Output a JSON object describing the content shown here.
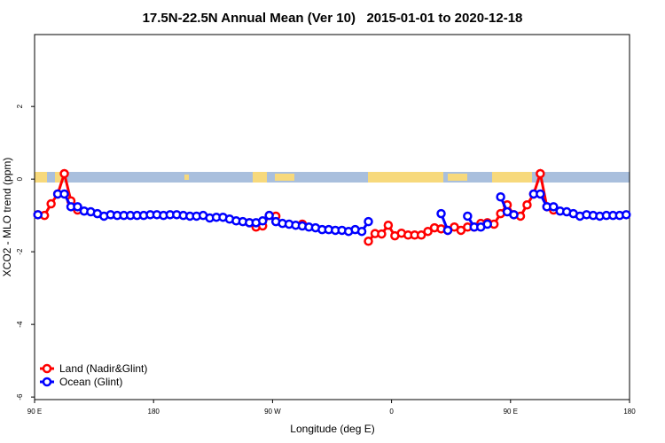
{
  "chart_data": {
    "type": "line",
    "title": "17.5N-22.5N Annual Mean (Ver 10)   2015-01-01 to 2020-12-18",
    "x_label": "Longitude (deg E)",
    "y_label": "XCO2 - MLO trend (ppm)",
    "xlim": [
      90,
      540
    ],
    "xticks": [
      {
        "value": 90,
        "label": "90 E"
      },
      180,
      {
        "value": 270,
        "label": "90 W"
      },
      {
        "value": 360,
        "label": "0"
      },
      {
        "value": 450,
        "label": "90 E"
      },
      {
        "value": 540,
        "label": "180"
      }
    ],
    "ylim": [
      -6.07,
      3.98
    ],
    "yticks": [
      -6,
      -4,
      -2,
      0,
      2
    ],
    "legend": "bottomleft",
    "x": [
      92.5,
      97.5,
      102.5,
      107.5,
      112.5,
      117.5,
      122.5,
      127.5,
      132.5,
      137.5,
      142.5,
      147.5,
      152.5,
      157.5,
      162.5,
      167.5,
      172.5,
      177.5,
      182.5,
      187.5,
      192.5,
      197.5,
      202.5,
      207.5,
      212.5,
      217.5,
      222.5,
      227.5,
      232.5,
      237.5,
      242.5,
      247.5,
      252.5,
      257.5,
      262.5,
      267.5,
      272.5,
      277.5,
      282.5,
      287.5,
      292.5,
      297.5,
      302.5,
      307.5,
      312.5,
      317.5,
      322.5,
      327.5,
      332.5,
      337.5,
      342.5,
      347.5,
      352.5,
      357.5,
      362.5,
      367.5,
      372.5,
      377.5,
      382.5,
      387.5,
      392.5,
      397.5,
      402.5,
      407.5,
      412.5,
      417.5,
      422.5,
      427.5,
      432.5,
      437.5,
      442.5,
      447.5,
      452.5,
      457.5,
      462.5,
      467.5,
      472.5,
      477.5,
      482.5,
      487.5,
      492.5,
      497.5,
      502.5,
      507.5,
      512.5,
      517.5,
      522.5,
      527.5,
      532.5,
      537.5
    ],
    "series": [
      {
        "name": "Land (Nadir&Glint)",
        "color": "#ff0000",
        "values": [
          -0.98,
          -1.0,
          -0.68,
          -0.41,
          0.15,
          -0.6,
          -0.85,
          null,
          null,
          null,
          null,
          null,
          null,
          null,
          null,
          null,
          null,
          null,
          null,
          null,
          null,
          null,
          null,
          null,
          null,
          null,
          null,
          null,
          null,
          null,
          null,
          null,
          -1.2,
          -1.32,
          -1.29,
          -1.0,
          -1.02,
          null,
          null,
          null,
          -1.24,
          null,
          null,
          null,
          null,
          null,
          null,
          null,
          null,
          null,
          -1.71,
          -1.5,
          -1.51,
          -1.27,
          -1.56,
          -1.49,
          -1.54,
          -1.54,
          -1.54,
          -1.44,
          -1.34,
          -1.37,
          -1.41,
          -1.32,
          -1.41,
          -1.32,
          -1.32,
          -1.22,
          -1.2,
          -1.24,
          -0.95,
          -0.71,
          -0.98,
          -1.02,
          -0.71,
          -0.41,
          0.15,
          -0.76,
          -0.85,
          null,
          null,
          null,
          null,
          null,
          null,
          null,
          null,
          null,
          null,
          null
        ]
      },
      {
        "name": "Ocean (Glint)",
        "color": "#0000ff",
        "values": [
          -0.98,
          null,
          null,
          -0.41,
          -0.41,
          -0.76,
          -0.76,
          -0.88,
          -0.9,
          -0.95,
          -1.02,
          -0.98,
          -1.0,
          -1.0,
          -1.0,
          -1.0,
          -1.0,
          -0.98,
          -0.98,
          -1.0,
          -0.98,
          -0.98,
          -1.0,
          -1.02,
          -1.02,
          -1.0,
          -1.07,
          -1.05,
          -1.05,
          -1.1,
          -1.15,
          -1.17,
          -1.2,
          -1.2,
          -1.15,
          -1.0,
          -1.17,
          -1.22,
          -1.24,
          -1.27,
          -1.29,
          -1.32,
          -1.34,
          -1.39,
          -1.39,
          -1.41,
          -1.41,
          -1.44,
          -1.39,
          -1.44,
          -1.17,
          null,
          null,
          null,
          null,
          null,
          null,
          null,
          null,
          null,
          null,
          -0.95,
          -1.41,
          null,
          null,
          -1.02,
          -1.32,
          -1.32,
          -1.24,
          null,
          -0.49,
          -0.9,
          -0.98,
          null,
          null,
          -0.41,
          -0.41,
          -0.76,
          -0.76,
          -0.88,
          -0.9,
          -0.95,
          -1.02,
          -0.98,
          -1.0,
          -1.02,
          -1.0,
          -1.0,
          -1.0,
          -0.98
        ]
      }
    ]
  }
}
